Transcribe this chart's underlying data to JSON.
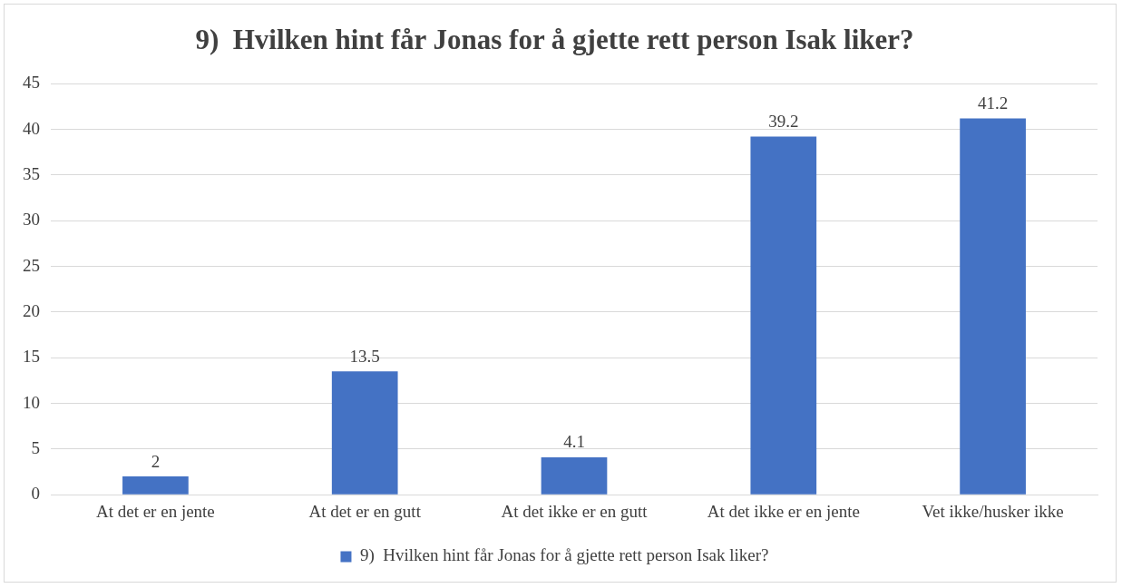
{
  "chart_data": {
    "type": "bar",
    "title": "9)  Hvilken hint får Jonas for å gjette rett person Isak liker?",
    "categories": [
      "At det er en jente",
      "At det er en gutt",
      "At det ikke er en gutt",
      "At det ikke er en jente",
      "Vet ikke/husker ikke"
    ],
    "series": [
      {
        "name": "9)  Hvilken hint får Jonas for å gjette rett person Isak liker?",
        "color": "#4472c4",
        "values": [
          2,
          13.5,
          4.1,
          39.2,
          41.2
        ]
      }
    ],
    "ylim": [
      0,
      45
    ],
    "yticks": [
      0,
      5,
      10,
      15,
      20,
      25,
      30,
      35,
      40,
      45
    ],
    "grid": "y",
    "legend": "bottom",
    "data_labels": true
  }
}
